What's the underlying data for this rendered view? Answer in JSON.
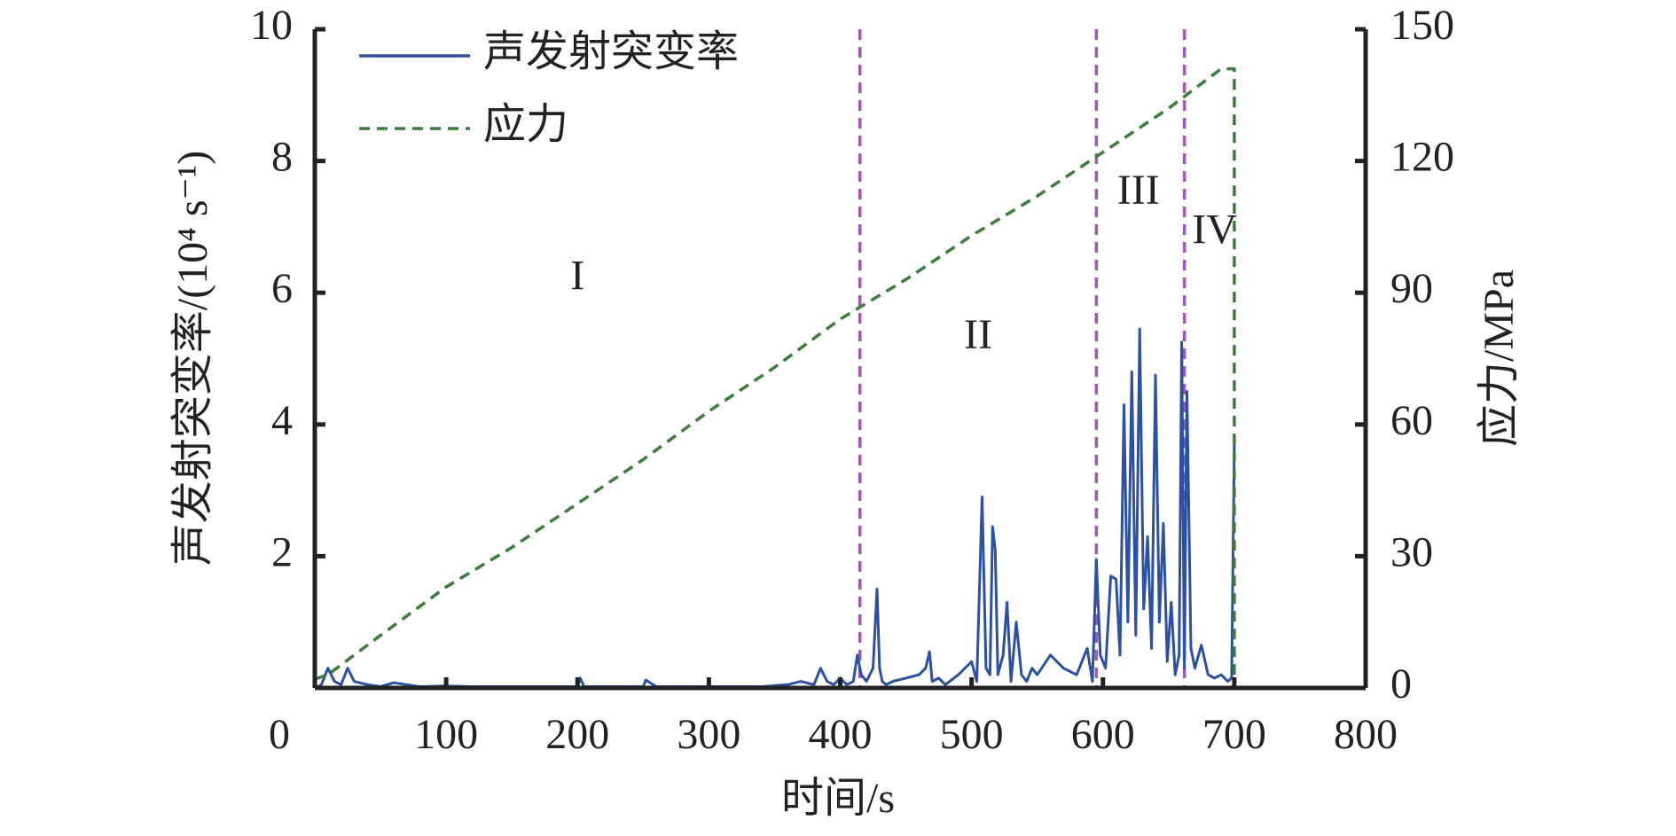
{
  "chart_data": {
    "type": "line",
    "xlabel": "时间/s",
    "ylabel": "声发射突变率/(10⁴ s⁻¹)",
    "y2label": "应力/MPa",
    "xlim": [
      0,
      800
    ],
    "xticks": [
      0,
      100,
      200,
      300,
      400,
      500,
      600,
      700,
      800
    ],
    "ylim": [
      0,
      10
    ],
    "yticks": [
      2,
      4,
      6,
      8,
      10
    ],
    "y2lim": [
      0,
      150
    ],
    "y2ticks": [
      0,
      30,
      60,
      90,
      120,
      150
    ],
    "legend": "upper left",
    "stage_lines": {
      "x": [
        415,
        595,
        662
      ],
      "color": "#a555b5"
    },
    "annotations": [
      "I",
      "II",
      "III",
      "IV"
    ],
    "series": [
      {
        "name": "声发射突变率",
        "color": "#2c51a3",
        "style": "solid",
        "x": [
          0,
          5,
          10,
          15,
          20,
          25,
          30,
          40,
          50,
          60,
          70,
          80,
          100,
          120,
          140,
          160,
          180,
          200,
          202,
          205,
          220,
          240,
          250,
          252,
          260,
          280,
          300,
          320,
          340,
          360,
          370,
          380,
          385,
          390,
          395,
          400,
          405,
          410,
          413,
          416,
          420,
          425,
          428,
          430,
          432,
          435,
          440,
          450,
          460,
          465,
          468,
          470,
          475,
          480,
          490,
          500,
          504,
          508,
          511,
          514,
          516,
          518,
          520,
          524,
          527,
          530,
          534,
          538,
          542,
          546,
          550,
          560,
          570,
          580,
          588,
          592,
          595,
          598,
          602,
          606,
          610,
          613,
          616,
          619,
          622,
          625,
          628,
          631,
          634,
          637,
          640,
          643,
          646,
          649,
          652,
          655,
          658,
          660,
          662,
          664,
          667,
          670,
          675,
          680,
          685,
          690,
          695,
          698,
          700
        ],
        "values": [
          0,
          0.05,
          0.3,
          0.1,
          0.05,
          0.3,
          0.1,
          0.05,
          0.02,
          0.08,
          0.05,
          0.02,
          0.03,
          0.02,
          0.02,
          0.02,
          0.02,
          0.02,
          0.15,
          0.02,
          0.02,
          0.02,
          0.02,
          0.12,
          0.02,
          0.02,
          0.02,
          0.02,
          0.02,
          0.05,
          0.1,
          0.05,
          0.3,
          0.1,
          0.05,
          0.15,
          0.05,
          0.1,
          0.5,
          0.2,
          0.1,
          0.3,
          1.5,
          0.3,
          0.1,
          0.05,
          0.1,
          0.15,
          0.2,
          0.3,
          0.55,
          0.1,
          0.15,
          0.05,
          0.2,
          0.4,
          0.1,
          2.9,
          0.3,
          0.2,
          2.45,
          2.1,
          0.2,
          0.5,
          1.3,
          0.1,
          1.0,
          0.2,
          0.1,
          0.3,
          0.2,
          0.5,
          0.3,
          0.2,
          0.6,
          0.1,
          1.95,
          0.5,
          0.3,
          1.7,
          1.65,
          0.5,
          4.3,
          1.0,
          4.8,
          0.8,
          5.45,
          1.2,
          2.3,
          0.6,
          4.75,
          1.0,
          2.5,
          0.4,
          1.3,
          0.2,
          0.5,
          5.25,
          0.3,
          4.5,
          0.6,
          0.3,
          0.65,
          0.2,
          0.15,
          0.2,
          0.1,
          0.15,
          3.7
        ]
      },
      {
        "name": "应力",
        "color": "#3b7d3b",
        "style": "dashed",
        "axis": "y2",
        "x": [
          0,
          10,
          50,
          100,
          150,
          200,
          250,
          300,
          350,
          400,
          450,
          500,
          550,
          600,
          650,
          690,
          700,
          700
        ],
        "values": [
          2,
          3,
          12,
          23,
          32,
          42,
          52,
          63,
          73,
          84,
          93,
          103,
          112,
          122,
          132,
          141,
          141,
          0
        ]
      }
    ]
  }
}
